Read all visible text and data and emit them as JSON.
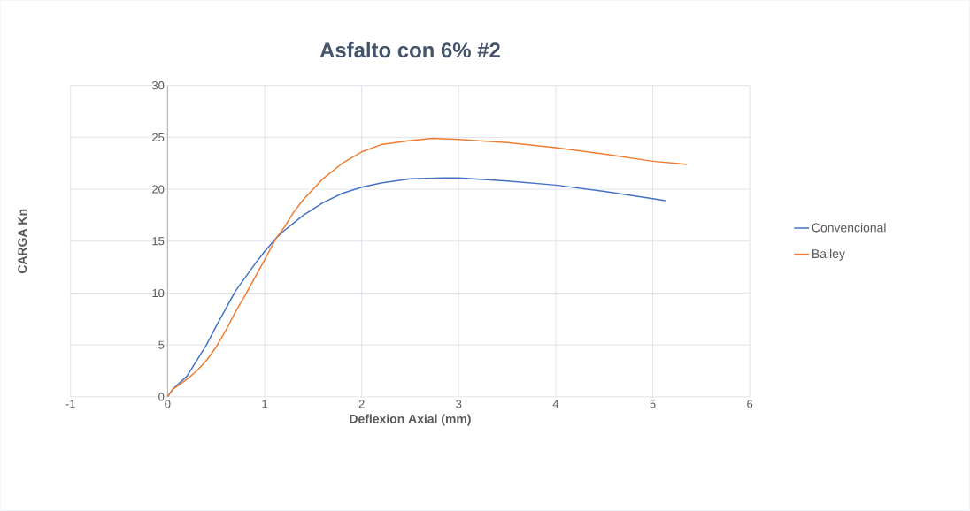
{
  "chart_data": {
    "type": "line",
    "title": "Asfalto con 6% #2",
    "xlabel": "Deflexion Axial (mm)",
    "ylabel": "CARGA Kn",
    "xlim": [
      -1,
      6
    ],
    "xticks": [
      -1,
      0,
      1,
      2,
      3,
      4,
      5,
      6
    ],
    "ylim": [
      0,
      30
    ],
    "yticks": [
      0,
      5,
      10,
      15,
      20,
      25,
      30
    ],
    "grid": true,
    "legend": "right",
    "marker": "none",
    "line_style": "solid",
    "series": [
      {
        "name": "Convencional",
        "color": "#4472c4",
        "x": [
          0,
          0.05,
          0.2,
          0.3,
          0.4,
          0.5,
          0.6,
          0.7,
          0.8,
          0.9,
          1.0,
          1.12,
          1.2,
          1.4,
          1.6,
          1.8,
          2.0,
          2.2,
          2.5,
          2.84,
          3.0,
          3.5,
          4.0,
          4.5,
          5.0,
          5.13
        ],
        "values": [
          0,
          0.7,
          2,
          3.5,
          5,
          6.8,
          8.5,
          10.2,
          11.5,
          12.8,
          14,
          15.3,
          16,
          17.5,
          18.7,
          19.6,
          20.2,
          20.6,
          21,
          21.1,
          21.1,
          20.8,
          20.4,
          19.8,
          19.1,
          18.9
        ]
      },
      {
        "name": "Bailey",
        "color": "#ed7d31",
        "x": [
          0,
          0.05,
          0.2,
          0.3,
          0.4,
          0.5,
          0.6,
          0.7,
          0.8,
          0.9,
          1.0,
          1.12,
          1.2,
          1.3,
          1.4,
          1.6,
          1.8,
          2.0,
          2.2,
          2.5,
          2.74,
          3.0,
          3.5,
          4.0,
          4.5,
          5.0,
          5.35
        ],
        "values": [
          0,
          0.7,
          1.7,
          2.5,
          3.5,
          4.8,
          6.4,
          8.2,
          9.8,
          11.5,
          13.2,
          15.3,
          16.3,
          17.8,
          19,
          21,
          22.5,
          23.6,
          24.3,
          24.7,
          24.9,
          24.8,
          24.5,
          24,
          23.4,
          22.7,
          22.4
        ]
      }
    ]
  }
}
